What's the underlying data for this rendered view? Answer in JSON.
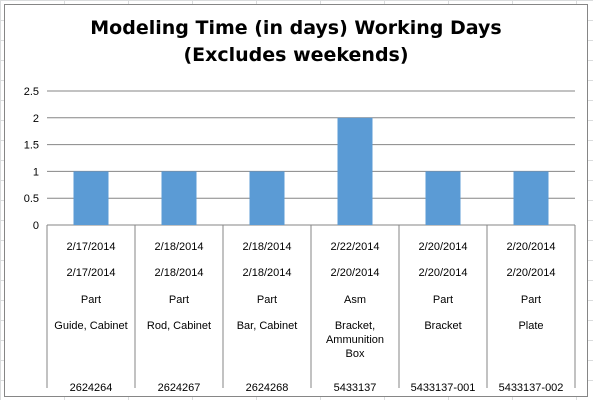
{
  "chart_data": {
    "type": "bar",
    "title_lines": [
      "Modeling Time (in days) Working Days",
      "(Excludes weekends)"
    ],
    "xlabel": "",
    "ylabel": "",
    "ylim": [
      0,
      2.5
    ],
    "yticks": [
      "0",
      "0.5",
      "1",
      "1.5",
      "2",
      "2.5"
    ],
    "grid": true,
    "bar_color": "#5b9bd5",
    "categories": [
      {
        "levels": [
          "2/17/2014",
          "2/17/2014",
          "Part",
          [
            "Guide, Cabinet"
          ],
          "2624264"
        ]
      },
      {
        "levels": [
          "2/18/2014",
          "2/18/2014",
          "Part",
          [
            "Rod, Cabinet"
          ],
          "2624267"
        ]
      },
      {
        "levels": [
          "2/18/2014",
          "2/18/2014",
          "Part",
          [
            "Bar, Cabinet"
          ],
          "2624268"
        ]
      },
      {
        "levels": [
          "2/22/2014",
          "2/20/2014",
          "Asm",
          [
            "Bracket,",
            "Ammunition",
            "Box"
          ],
          "5433137"
        ]
      },
      {
        "levels": [
          "2/20/2014",
          "2/20/2014",
          "Part",
          [
            "Bracket"
          ],
          "5433137-001"
        ]
      },
      {
        "levels": [
          "2/20/2014",
          "2/20/2014",
          "Part",
          [
            "Plate"
          ],
          "5433137-002"
        ]
      }
    ],
    "values": [
      1,
      1,
      1,
      2,
      1,
      1
    ]
  }
}
